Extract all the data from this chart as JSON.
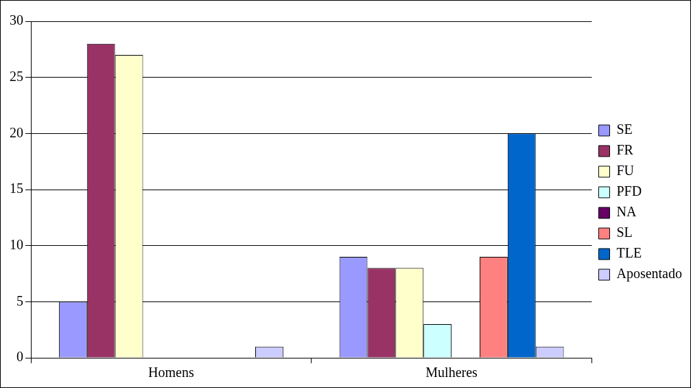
{
  "chart_data": {
    "type": "bar",
    "categories": [
      "Homens",
      "Mulheres"
    ],
    "series": [
      {
        "name": "SE",
        "color": "#9999ff",
        "values": [
          5,
          9
        ]
      },
      {
        "name": "FR",
        "color": "#993366",
        "values": [
          28,
          8
        ]
      },
      {
        "name": "FU",
        "color": "#ffffcc",
        "values": [
          27,
          8
        ]
      },
      {
        "name": "PFD",
        "color": "#ccffff",
        "values": [
          0,
          3
        ]
      },
      {
        "name": "NA",
        "color": "#660066",
        "values": [
          0,
          0
        ]
      },
      {
        "name": "SL",
        "color": "#ff8080",
        "values": [
          0,
          9
        ]
      },
      {
        "name": "TLE",
        "color": "#0066cc",
        "values": [
          0,
          20
        ]
      },
      {
        "name": "Aposentado",
        "color": "#ccccff",
        "values": [
          1,
          1
        ]
      }
    ],
    "ylim": [
      0,
      30
    ],
    "yticks": [
      0,
      5,
      10,
      15,
      20,
      25,
      30
    ],
    "grid": "y",
    "legend": "right"
  }
}
